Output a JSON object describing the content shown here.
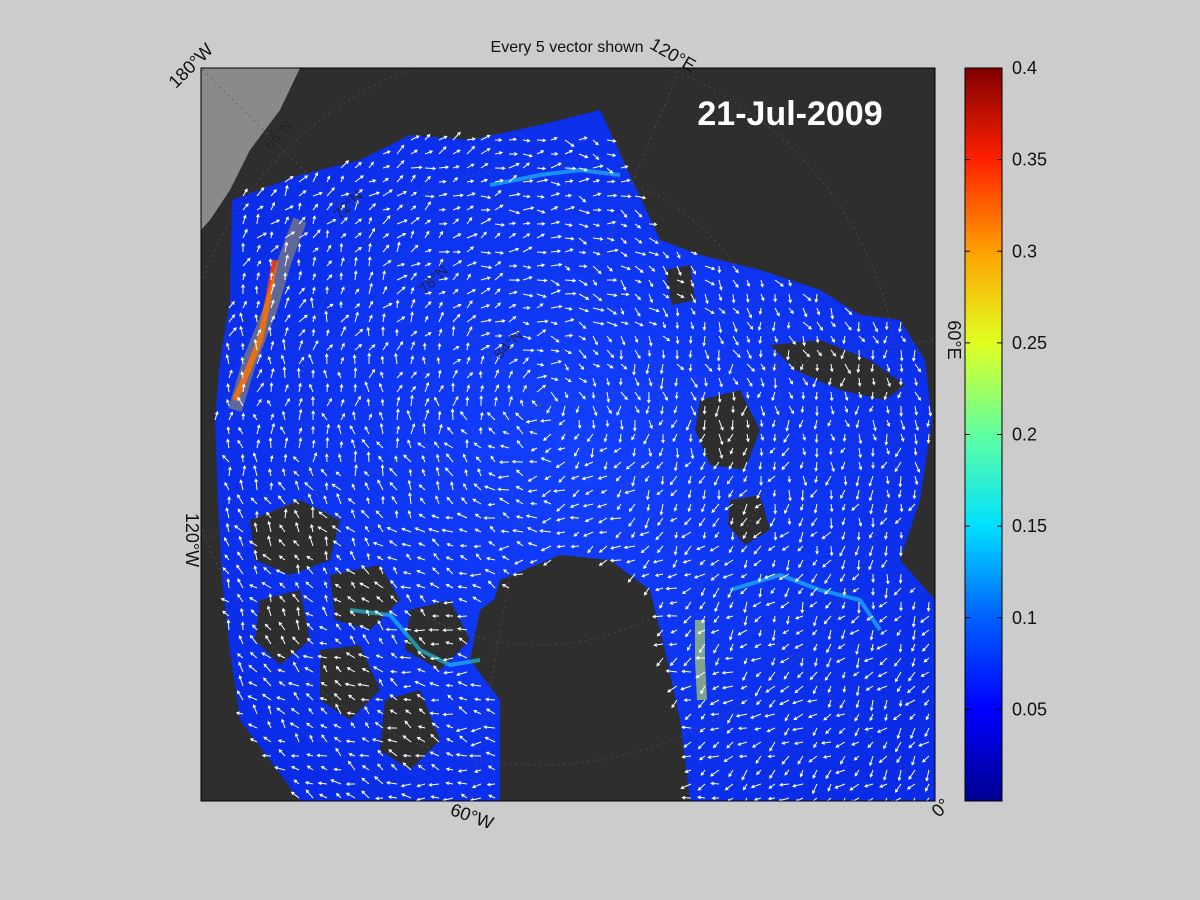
{
  "figure": {
    "title": "Every 5 vector shown",
    "date": "21-Jul-2009"
  },
  "map": {
    "projection": "polar stereographic (Arctic)",
    "field": "sea ice drift speed with drift vectors",
    "vector_color": "#ffffff",
    "ocean_low_color": "#0a2cf0",
    "land_color": "#2e2e2e",
    "ice_shelf_color": "#8a8a8a",
    "longitude_labels": [
      {
        "text": "180°W",
        "key": "lon_180w"
      },
      {
        "text": "120°E",
        "key": "lon_120e"
      },
      {
        "text": "60°E",
        "key": "lon_60e"
      },
      {
        "text": "0°",
        "key": "lon_0"
      },
      {
        "text": "60°W",
        "key": "lon_60w"
      },
      {
        "text": "120°W",
        "key": "lon_120w"
      }
    ],
    "latitude_labels": [
      "66°N",
      "72°N",
      "78°N",
      "84°N"
    ]
  },
  "colorbar": {
    "colormap": "jet",
    "range": [
      0,
      0.4
    ],
    "ticks": [
      "0.05",
      "0.1",
      "0.15",
      "0.2",
      "0.25",
      "0.3",
      "0.35",
      "0.4"
    ],
    "tick_values": [
      0.05,
      0.1,
      0.15,
      0.2,
      0.25,
      0.3,
      0.35,
      0.4
    ],
    "stops": [
      "#00008f",
      "#0000ff",
      "#0080ff",
      "#00ffff",
      "#80ff80",
      "#ffff00",
      "#ff8000",
      "#ff0000",
      "#800000"
    ]
  }
}
